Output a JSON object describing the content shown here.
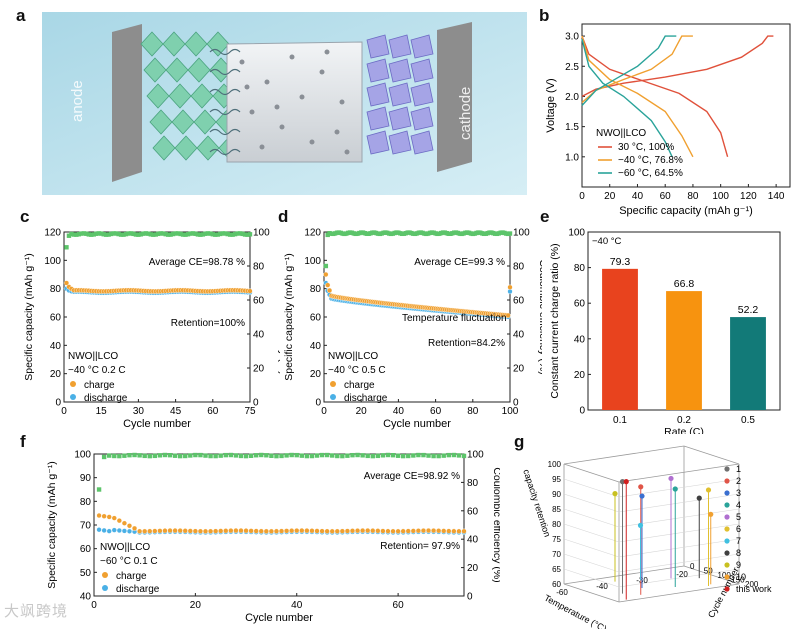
{
  "panels": {
    "a": {
      "label": "a",
      "anode_text": "anode",
      "cathode_text": "cathode"
    },
    "b": {
      "label": "b"
    },
    "c": {
      "label": "c"
    },
    "d": {
      "label": "d"
    },
    "e": {
      "label": "e"
    },
    "f": {
      "label": "f"
    },
    "g": {
      "label": "g"
    }
  },
  "watermark": "大飒跨境",
  "chart_data": [
    {
      "id": "b",
      "type": "line",
      "xlabel": "Specific capacity (mAh g⁻¹)",
      "ylabel": "Voltage (V)",
      "xlim": [
        0,
        150
      ],
      "ylim": [
        0.5,
        3.2
      ],
      "xticks": [
        0,
        20,
        40,
        60,
        80,
        100,
        120,
        140
      ],
      "yticks": [
        1.0,
        1.5,
        2.0,
        2.5,
        3.0
      ],
      "legend_title": "NWO||LCO",
      "legend_position": "bottom-left",
      "series": [
        {
          "name": "30 °C, 100%",
          "color": "#e0513b",
          "charge": [
            [
              0,
              2.0
            ],
            [
              10,
              2.12
            ],
            [
              30,
              2.22
            ],
            [
              60,
              2.32
            ],
            [
              90,
              2.45
            ],
            [
              115,
              2.65
            ],
            [
              130,
              2.88
            ],
            [
              134,
              3.0
            ],
            [
              138,
              3.0
            ]
          ],
          "discharge": [
            [
              0,
              3.0
            ],
            [
              5,
              2.7
            ],
            [
              20,
              2.45
            ],
            [
              45,
              2.25
            ],
            [
              70,
              2.05
            ],
            [
              90,
              1.75
            ],
            [
              100,
              1.4
            ],
            [
              105,
              1.0
            ]
          ]
        },
        {
          "name": "−40 °C, 76.8%",
          "color": "#f0a030",
          "charge": [
            [
              0,
              1.9
            ],
            [
              10,
              2.1
            ],
            [
              30,
              2.28
            ],
            [
              50,
              2.45
            ],
            [
              65,
              2.7
            ],
            [
              72,
              3.0
            ],
            [
              80,
              3.0
            ]
          ],
          "discharge": [
            [
              0,
              3.0
            ],
            [
              5,
              2.6
            ],
            [
              20,
              2.28
            ],
            [
              40,
              2.05
            ],
            [
              60,
              1.75
            ],
            [
              72,
              1.35
            ],
            [
              80,
              1.0
            ]
          ]
        },
        {
          "name": "−60 °C, 64.5%",
          "color": "#2aa39a",
          "charge": [
            [
              0,
              1.85
            ],
            [
              10,
              2.1
            ],
            [
              25,
              2.3
            ],
            [
              40,
              2.5
            ],
            [
              55,
              2.8
            ],
            [
              60,
              3.0
            ],
            [
              68,
              3.0
            ]
          ],
          "discharge": [
            [
              0,
              2.95
            ],
            [
              5,
              2.5
            ],
            [
              15,
              2.22
            ],
            [
              30,
              2.0
            ],
            [
              50,
              1.6
            ],
            [
              60,
              1.25
            ],
            [
              65,
              1.0
            ]
          ]
        }
      ]
    },
    {
      "id": "c",
      "type": "scatter",
      "xlabel": "Cycle number",
      "ylabel": "Specific capacity (mAh g⁻¹)",
      "ylabel_right": "Coulombic efficiency (%)",
      "xlim": [
        0,
        75
      ],
      "ylim": [
        0,
        120
      ],
      "ylim_right": [
        0,
        100
      ],
      "xticks": [
        0,
        15,
        30,
        45,
        60,
        75
      ],
      "yticks": [
        0,
        20,
        40,
        60,
        80,
        100,
        120
      ],
      "yticks_right": [
        0,
        20,
        40,
        60,
        80,
        100
      ],
      "annotations": [
        "Average CE=98.78 %",
        "Retention=100%"
      ],
      "legend_title": "NWO||LCO",
      "condition": "−40 °C  0.2 C",
      "series": [
        {
          "name": "charge",
          "color": "#f0a030",
          "start": 84,
          "plateau": 78.5,
          "n": 75
        },
        {
          "name": "discharge",
          "color": "#4ab0e6",
          "start": 80,
          "plateau": 77.5,
          "n": 75
        },
        {
          "name": "CE",
          "color": "#5cc46a",
          "first": 91,
          "plateau": 98.8,
          "n": 75
        }
      ]
    },
    {
      "id": "d",
      "type": "scatter",
      "xlabel": "Cycle number",
      "ylabel": "Specific capacity (mAh g⁻¹)",
      "ylabel_right": "Coulombic efficiency (%)",
      "xlim": [
        0,
        100
      ],
      "ylim": [
        0,
        120
      ],
      "ylim_right": [
        0,
        100
      ],
      "xticks": [
        0,
        20,
        40,
        60,
        80,
        100
      ],
      "yticks": [
        0,
        20,
        40,
        60,
        80,
        100,
        120
      ],
      "yticks_right": [
        0,
        20,
        40,
        60,
        80,
        100
      ],
      "annotations": [
        "Average CE=99.3 %",
        "Temperature fluctuation",
        "Retention=84.2%"
      ],
      "legend_title": "NWO||LCO",
      "condition": "−40 °C  0.5 C",
      "series": [
        {
          "name": "charge",
          "color": "#f0a030",
          "start": 90,
          "second": 75,
          "end": 61,
          "n": 100,
          "last": 81
        },
        {
          "name": "discharge",
          "color": "#4ab0e6",
          "start": 84,
          "second": 73,
          "end": 60,
          "n": 100,
          "last": 78
        },
        {
          "name": "CE",
          "color": "#5cc46a",
          "first": 80,
          "plateau": 99.3,
          "n": 100
        }
      ]
    },
    {
      "id": "e",
      "type": "bar",
      "condition": "−40 °C",
      "xlabel": "Rate (C)",
      "ylabel": "Constant current charge ratio (%)",
      "ylim": [
        0,
        100
      ],
      "yticks": [
        0,
        20,
        40,
        60,
        80,
        100
      ],
      "categories": [
        "0.1",
        "0.2",
        "0.5"
      ],
      "values": [
        79.3,
        66.8,
        52.2
      ],
      "value_labels": [
        "79.3",
        "66.8",
        "52.2"
      ],
      "colors": [
        "#e8431e",
        "#f7930f",
        "#127a78"
      ]
    },
    {
      "id": "f",
      "type": "scatter",
      "xlabel": "Cycle number",
      "ylabel": "Specific capacity (mAh g⁻¹)",
      "ylabel_right": "Coulombic efficiency (%)",
      "xlim": [
        0,
        73
      ],
      "ylim": [
        40,
        100
      ],
      "ylim_right": [
        0,
        100
      ],
      "xticks": [
        0,
        20,
        40,
        60
      ],
      "yticks": [
        40,
        50,
        60,
        70,
        80,
        90,
        100
      ],
      "yticks_right": [
        0,
        20,
        40,
        60,
        80,
        100
      ],
      "annotations": [
        "Average CE=98.92 %",
        "Retention= 97.9%"
      ],
      "legend_title": "NWO||LCO",
      "condition": "−60 °C 0.1 C",
      "series": [
        {
          "name": "charge",
          "color": "#f0a030",
          "start": 74,
          "plateau": 67.5,
          "n": 73
        },
        {
          "name": "discharge",
          "color": "#4ab0e6",
          "start": 68,
          "plateau": 67,
          "n": 73
        },
        {
          "name": "CE",
          "color": "#5cc46a",
          "first": 75,
          "plateau": 98.9,
          "n": 73
        }
      ]
    },
    {
      "id": "g",
      "type": "scatter",
      "xlabel": "Temperature (°C)",
      "ylabel": "Cycle number",
      "zlabel": "capacity retention",
      "zticks": [
        60,
        65,
        70,
        75,
        80,
        85,
        90,
        95,
        100
      ],
      "xticks": [
        -60,
        -40,
        -30,
        -20
      ],
      "yticks": [
        0,
        50,
        100,
        150,
        200
      ],
      "legend": [
        {
          "name": "1",
          "color": "#707070"
        },
        {
          "name": "2",
          "color": "#e05548"
        },
        {
          "name": "3",
          "color": "#3a6fd0"
        },
        {
          "name": "4",
          "color": "#2aa39a"
        },
        {
          "name": "5",
          "color": "#b070d0"
        },
        {
          "name": "6",
          "color": "#e0c030"
        },
        {
          "name": "7",
          "color": "#40c0e0"
        },
        {
          "name": "8",
          "color": "#404040"
        },
        {
          "name": "9",
          "color": "#c8c020"
        },
        {
          "name": "10",
          "color": "#f0a030"
        },
        {
          "name": "this work",
          "color": "#d02020"
        }
      ]
    }
  ]
}
